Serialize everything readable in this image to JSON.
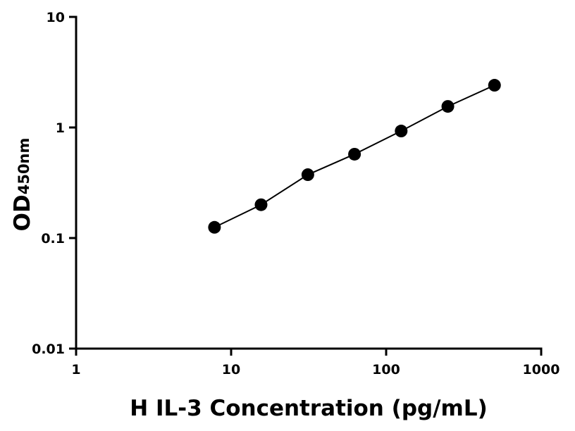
{
  "chart_data": {
    "type": "scatter",
    "xlabel": "H IL-3 Concentration (pg/mL)",
    "ylabel": "OD",
    "ylabel_subscript": "450nm",
    "x": [
      7.81,
      15.6,
      31.25,
      62.5,
      125,
      250,
      500
    ],
    "series": [
      {
        "color": "#000000",
        "values": [
          0.125,
          0.2,
          0.374,
          0.573,
          0.929,
          1.55,
          2.41
        ]
      }
    ],
    "xscale": "log",
    "yscale": "log",
    "xlim": [
      1,
      1000
    ],
    "ylim": [
      0.01,
      10
    ],
    "xticks": [
      1,
      10,
      100,
      1000
    ],
    "yticks": [
      0.01,
      0.1,
      1,
      10
    ],
    "connect": true
  }
}
